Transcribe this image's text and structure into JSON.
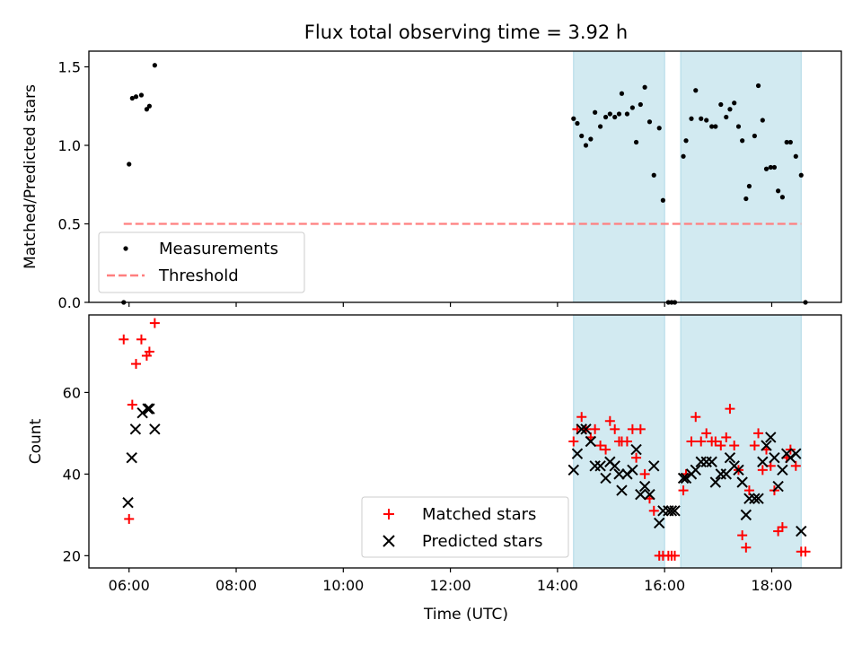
{
  "title": "Flux total observing time = 3.92 h",
  "xlabel": "Time (UTC)",
  "colors": {
    "band": "#add8e6",
    "threshold": "#ff7f7f",
    "matched": "#ff0000",
    "predicted": "#000000",
    "measure": "#000000"
  },
  "chart_data": [
    {
      "type": "scatter",
      "panel": "top",
      "ylabel": "Matched/Predicted stars",
      "ylim": [
        0,
        1.6
      ],
      "yticks": [
        0.0,
        0.5,
        1.0,
        1.5
      ],
      "ytick_labels": [
        "0.0",
        "0.5",
        "1.0",
        "1.5"
      ],
      "xlim": [
        5.25,
        19.3
      ],
      "xticks": [
        6,
        8,
        10,
        12,
        14,
        16,
        18
      ],
      "xtick_labels": [
        "06:00",
        "08:00",
        "10:00",
        "12:00",
        "14:00",
        "16:00",
        "18:00"
      ],
      "shaded_intervals": [
        [
          14.3,
          16.0
        ],
        [
          16.3,
          18.55
        ]
      ],
      "threshold": {
        "name": "Threshold",
        "y": 0.5,
        "x_range": [
          5.9,
          18.55
        ]
      },
      "legend": {
        "position": "lower-left",
        "entries": [
          "Measurements",
          "Threshold"
        ]
      },
      "series": [
        {
          "name": "Measurements",
          "x": [
            5.9,
            6.0,
            6.06,
            6.13,
            6.23,
            6.33,
            6.38,
            6.48,
            14.3,
            14.37,
            14.45,
            14.53,
            14.62,
            14.7,
            14.8,
            14.9,
            14.98,
            15.07,
            15.15,
            15.2,
            15.3,
            15.4,
            15.47,
            15.55,
            15.63,
            15.72,
            15.8,
            15.9,
            15.97,
            16.07,
            16.13,
            16.19,
            16.35,
            16.4,
            16.5,
            16.58,
            16.68,
            16.78,
            16.88,
            16.95,
            17.05,
            17.15,
            17.22,
            17.3,
            17.38,
            17.45,
            17.52,
            17.58,
            17.68,
            17.75,
            17.83,
            17.9,
            17.98,
            18.05,
            18.12,
            18.2,
            18.28,
            18.35,
            18.45,
            18.55,
            18.63
          ],
          "y": [
            0.0,
            0.88,
            1.3,
            1.31,
            1.32,
            1.23,
            1.25,
            1.51,
            1.17,
            1.14,
            1.06,
            1.0,
            1.04,
            1.21,
            1.12,
            1.18,
            1.2,
            1.18,
            1.2,
            1.33,
            1.2,
            1.24,
            1.02,
            1.26,
            1.37,
            1.15,
            0.81,
            1.11,
            0.65,
            0.0,
            0.0,
            0.0,
            0.93,
            1.03,
            1.17,
            1.35,
            1.17,
            1.16,
            1.12,
            1.12,
            1.26,
            1.18,
            1.23,
            1.27,
            1.12,
            1.03,
            0.66,
            0.74,
            1.06,
            1.38,
            1.16,
            0.85,
            0.86,
            0.86,
            0.71,
            0.67,
            1.02,
            1.02,
            0.93,
            0.81,
            0.0
          ]
        }
      ]
    },
    {
      "type": "scatter",
      "panel": "bottom",
      "ylabel": "Count",
      "ylim": [
        17,
        79
      ],
      "yticks": [
        20,
        40,
        60
      ],
      "ytick_labels": [
        "20",
        "40",
        "60"
      ],
      "xlim": [
        5.25,
        19.3
      ],
      "xticks": [
        6,
        8,
        10,
        12,
        14,
        16,
        18
      ],
      "xtick_labels": [
        "06:00",
        "08:00",
        "10:00",
        "12:00",
        "14:00",
        "16:00",
        "18:00"
      ],
      "shaded_intervals": [
        [
          14.3,
          16.0
        ],
        [
          16.3,
          18.55
        ]
      ],
      "legend": {
        "position": "lower-right",
        "entries": [
          "Matched stars",
          "Predicted stars"
        ]
      },
      "series": [
        {
          "name": "Matched stars",
          "marker": "plus",
          "x": [
            5.9,
            6.0,
            6.06,
            6.13,
            6.23,
            6.33,
            6.38,
            6.48,
            14.3,
            14.37,
            14.45,
            14.53,
            14.62,
            14.7,
            14.8,
            14.9,
            14.98,
            15.07,
            15.15,
            15.2,
            15.3,
            15.4,
            15.47,
            15.55,
            15.63,
            15.72,
            15.8,
            15.9,
            15.97,
            16.07,
            16.13,
            16.19,
            16.35,
            16.4,
            16.5,
            16.58,
            16.68,
            16.78,
            16.88,
            16.95,
            17.05,
            17.15,
            17.22,
            17.3,
            17.38,
            17.45,
            17.52,
            17.58,
            17.68,
            17.75,
            17.83,
            17.9,
            17.98,
            18.05,
            18.12,
            18.2,
            18.28,
            18.35,
            18.45,
            18.55,
            18.63
          ],
          "y": [
            73,
            29,
            57,
            67,
            73,
            69,
            70,
            77,
            48,
            51,
            54,
            51,
            49,
            51,
            47,
            46,
            53,
            51,
            48,
            48,
            48,
            51,
            44,
            51,
            40,
            34,
            31,
            20,
            20,
            20,
            20,
            20,
            36,
            40,
            48,
            54,
            48,
            50,
            48,
            48,
            47,
            49,
            56,
            47,
            41,
            25,
            22,
            36,
            47,
            50,
            41,
            46,
            42,
            36,
            26,
            27,
            44,
            46,
            42,
            21,
            21
          ]
        },
        {
          "name": "Predicted stars",
          "marker": "x",
          "x": [
            14.3,
            14.37,
            14.45,
            14.53,
            14.62,
            14.7,
            14.8,
            14.9,
            14.98,
            15.07,
            15.15,
            15.2,
            15.3,
            15.4,
            15.47,
            15.55,
            15.63,
            15.72,
            15.8,
            15.9,
            15.97,
            16.07,
            16.13,
            16.19,
            16.35,
            16.4,
            16.5,
            16.58,
            16.68,
            16.78,
            16.88,
            16.95,
            17.05,
            17.15,
            17.22,
            17.3,
            17.38,
            17.45,
            17.52,
            17.58,
            17.68,
            17.75,
            17.83,
            17.9,
            17.98,
            18.05,
            18.12,
            18.2,
            18.28,
            18.35,
            18.45,
            18.55,
            5.98,
            6.05,
            6.12,
            6.25,
            6.35,
            6.38,
            6.48
          ],
          "y": [
            41,
            45,
            51,
            51,
            48,
            42,
            42,
            39,
            43,
            42,
            40,
            36,
            40,
            41,
            46,
            35,
            37,
            35,
            42,
            28,
            31,
            31,
            31,
            31,
            39,
            39,
            40,
            41,
            43,
            43,
            43,
            38,
            40,
            40,
            44,
            42,
            41,
            38,
            30,
            34,
            34,
            34,
            43,
            47,
            49,
            44,
            37,
            41,
            45,
            44,
            45,
            26,
            33,
            44,
            51,
            55,
            56,
            56,
            51
          ]
        }
      ]
    }
  ]
}
